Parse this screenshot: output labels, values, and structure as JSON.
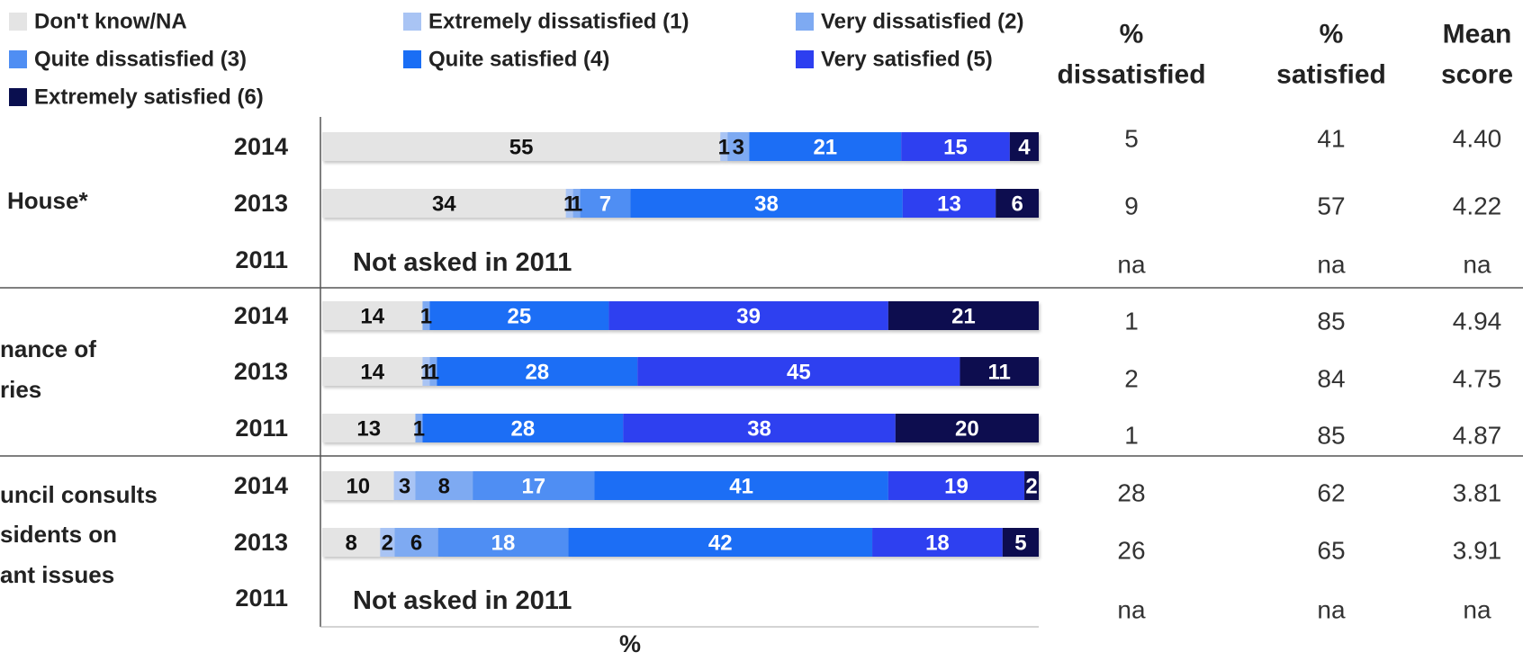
{
  "chart_data": {
    "type": "stacked-bar",
    "orientation": "horizontal",
    "xlabel": "%",
    "xlim": [
      0,
      100
    ],
    "legend": {
      "placement": "top-left",
      "entries": [
        {
          "label": "Don't know/NA",
          "color": "#e4e4e4"
        },
        {
          "label": "Extremely dissatisfied (1)",
          "color": "#a9c4f4"
        },
        {
          "label": "Very dissatisfied (2)",
          "color": "#7eaaf2"
        },
        {
          "label": "Quite dissatisfied (3)",
          "color": "#4f8ef3"
        },
        {
          "label": "Quite satisfied (4)",
          "color": "#1a6ef5"
        },
        {
          "label": "Very satisfied (5)",
          "color": "#2d3ff0"
        },
        {
          "label": "Extremely satisfied (6)",
          "color": "#0a0f4f"
        }
      ]
    },
    "column_headers": {
      "dissatisfied": [
        "%",
        "dissatisfied"
      ],
      "satisfied": [
        "%",
        "satisfied"
      ],
      "mean": [
        "Mean",
        "score"
      ]
    },
    "groups": [
      {
        "label_lines": [
          "House*"
        ],
        "rows": [
          {
            "year": "2014",
            "values": [
              55,
              1,
              3,
              0,
              21,
              15,
              4
            ],
            "labels": [
              "55",
              "1",
              "3",
              "",
              "21",
              "15",
              "4"
            ],
            "note": "",
            "dissatisfied": "5",
            "satisfied": "41",
            "mean": "4.40"
          },
          {
            "year": "2013",
            "values": [
              34,
              1,
              1,
              7,
              38,
              13,
              6
            ],
            "labels": [
              "34",
              "1",
              "1",
              "7",
              "38",
              "13",
              "6"
            ],
            "note": "",
            "dissatisfied": "9",
            "satisfied": "57",
            "mean": "4.22"
          },
          {
            "year": "2011",
            "values": [],
            "labels": [],
            "note": "Not asked in 2011",
            "dissatisfied": "na",
            "satisfied": "na",
            "mean": "na"
          }
        ]
      },
      {
        "label_lines": [
          "nance of",
          "ries"
        ],
        "rows": [
          {
            "year": "2014",
            "values": [
              14,
              0,
              1,
              0,
              25,
              39,
              21
            ],
            "labels": [
              "14",
              "",
              "1",
              "",
              "25",
              "39",
              "21"
            ],
            "note": "",
            "dissatisfied": "1",
            "satisfied": "85",
            "mean": "4.94"
          },
          {
            "year": "2013",
            "values": [
              14,
              1,
              1,
              0,
              28,
              45,
              11
            ],
            "labels": [
              "14",
              "1",
              "1",
              "",
              "28",
              "45",
              "11"
            ],
            "note": "",
            "dissatisfied": "2",
            "satisfied": "84",
            "mean": "4.75"
          },
          {
            "year": "2011",
            "values": [
              13,
              0,
              1,
              0,
              28,
              38,
              20
            ],
            "labels": [
              "13",
              "",
              "1",
              "",
              "28",
              "38",
              "20"
            ],
            "note": "",
            "dissatisfied": "1",
            "satisfied": "85",
            "mean": "4.87"
          }
        ]
      },
      {
        "label_lines": [
          "uncil consults",
          "sidents on",
          "ant issues"
        ],
        "rows": [
          {
            "year": "2014",
            "values": [
              10,
              3,
              8,
              17,
              41,
              19,
              2
            ],
            "labels": [
              "10",
              "3",
              "8",
              "17",
              "41",
              "19",
              "2"
            ],
            "note": "",
            "dissatisfied": "28",
            "satisfied": "62",
            "mean": "3.81"
          },
          {
            "year": "2013",
            "values": [
              8,
              2,
              6,
              18,
              42,
              18,
              5
            ],
            "labels": [
              "8",
              "2",
              "6",
              "18",
              "42",
              "18",
              "5"
            ],
            "note": "",
            "dissatisfied": "26",
            "satisfied": "65",
            "mean": "3.91"
          },
          {
            "year": "2011",
            "values": [],
            "labels": [],
            "note": "Not asked in 2011",
            "dissatisfied": "na",
            "satisfied": "na",
            "mean": "na"
          }
        ]
      }
    ]
  }
}
